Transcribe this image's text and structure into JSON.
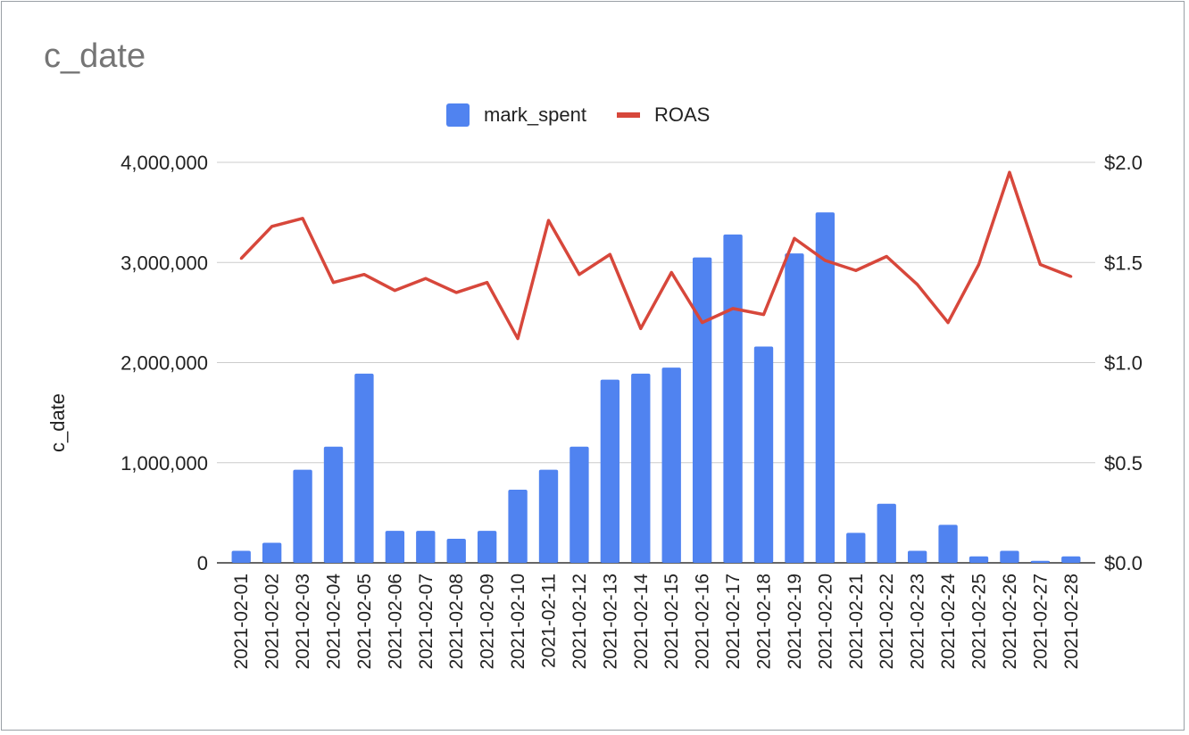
{
  "chart_data": {
    "type": "bar",
    "title": "c_date",
    "xlabel": "",
    "ylabel": "c_date",
    "y2label": "",
    "ylim": [
      0,
      4000000
    ],
    "y2lim": [
      0,
      2.0
    ],
    "yticks": [
      "0",
      "1,000,000",
      "2,000,000",
      "3,000,000",
      "4,000,000"
    ],
    "y2ticks": [
      "$0.0",
      "$0.5",
      "$1.0",
      "$1.5",
      "$2.0"
    ],
    "grid": true,
    "legend_position": "top",
    "categories": [
      "2021-02-01",
      "2021-02-02",
      "2021-02-03",
      "2021-02-04",
      "2021-02-05",
      "2021-02-06",
      "2021-02-07",
      "2021-02-08",
      "2021-02-09",
      "2021-02-10",
      "2021-02-11",
      "2021-02-12",
      "2021-02-13",
      "2021-02-14",
      "2021-02-15",
      "2021-02-16",
      "2021-02-17",
      "2021-02-18",
      "2021-02-19",
      "2021-02-20",
      "2021-02-21",
      "2021-02-22",
      "2021-02-23",
      "2021-02-24",
      "2021-02-25",
      "2021-02-26",
      "2021-02-27",
      "2021-02-28"
    ],
    "series": [
      {
        "name": "mark_spent",
        "type": "bar",
        "axis": "left",
        "color": "#5083f0",
        "values": [
          120000,
          200000,
          930000,
          1160000,
          1890000,
          320000,
          320000,
          240000,
          320000,
          730000,
          930000,
          1160000,
          1830000,
          1890000,
          1950000,
          3050000,
          3280000,
          2160000,
          3090000,
          3500000,
          300000,
          590000,
          120000,
          380000,
          65000,
          120000,
          20000,
          65000
        ]
      },
      {
        "name": "ROAS",
        "type": "line",
        "axis": "right",
        "color": "#d7473b",
        "values": [
          1.52,
          1.68,
          1.72,
          1.4,
          1.44,
          1.36,
          1.42,
          1.35,
          1.4,
          1.12,
          1.71,
          1.44,
          1.54,
          1.17,
          1.45,
          1.2,
          1.27,
          1.24,
          1.62,
          1.51,
          1.46,
          1.53,
          1.39,
          1.2,
          1.49,
          1.95,
          1.49,
          1.43
        ]
      }
    ]
  }
}
